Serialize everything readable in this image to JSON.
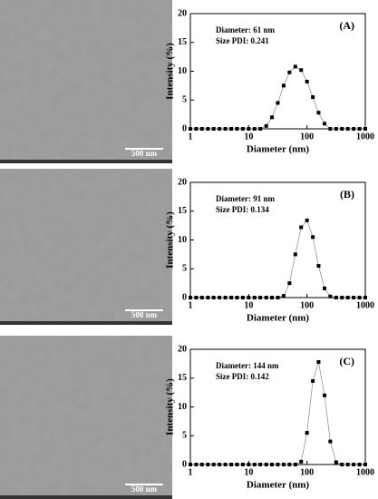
{
  "micrographs": [
    {
      "scale_bar": "500 nm"
    },
    {
      "scale_bar": "500 nm"
    },
    {
      "scale_bar": "500 nm"
    }
  ],
  "chart_data": [
    {
      "type": "scatter",
      "panel": "(A)",
      "annotations": [
        "Diameter: 61 nm",
        "Size PDI: 0.241"
      ],
      "x_label": "Diameter (nm)",
      "y_label": "Intensity (%)",
      "xscale": "log",
      "xlim": [
        1,
        1000
      ],
      "xticks": [
        1,
        10,
        100,
        1000
      ],
      "ylim": [
        0,
        20
      ],
      "yticks": [
        0,
        5,
        10,
        15,
        20
      ],
      "color": "#000000",
      "x": [
        1,
        1.26,
        1.58,
        2,
        2.51,
        3.16,
        3.98,
        5.01,
        6.31,
        7.94,
        10,
        12.6,
        15.8,
        20,
        25.1,
        31.6,
        39.8,
        50.1,
        63.1,
        79.4,
        100,
        126,
        158,
        200,
        251,
        316,
        398,
        501,
        631,
        794,
        1000
      ],
      "values": [
        0,
        0,
        0,
        0,
        0,
        0,
        0,
        0,
        0,
        0,
        0,
        0,
        0,
        0.5,
        2,
        4.5,
        7.5,
        9.8,
        10.8,
        10.2,
        8.2,
        5.5,
        2.8,
        0.9,
        0,
        0,
        0,
        0,
        0,
        0,
        0
      ]
    },
    {
      "type": "scatter",
      "panel": "(B)",
      "annotations": [
        "Diameter: 91 nm",
        "Size PDI: 0.134"
      ],
      "x_label": "Diameter (nm)",
      "y_label": "Intensity (%)",
      "xscale": "log",
      "xlim": [
        1,
        1000
      ],
      "xticks": [
        1,
        10,
        100,
        1000
      ],
      "ylim": [
        0,
        20
      ],
      "yticks": [
        0,
        5,
        10,
        15,
        20
      ],
      "color": "#000000",
      "x": [
        1,
        1.26,
        1.58,
        2,
        2.51,
        3.16,
        3.98,
        5.01,
        6.31,
        7.94,
        10,
        12.6,
        15.8,
        20,
        25.1,
        31.6,
        39.8,
        50.1,
        63.1,
        79.4,
        100,
        126,
        158,
        200,
        251,
        316,
        398,
        501,
        631,
        794,
        1000
      ],
      "values": [
        0,
        0,
        0,
        0,
        0,
        0,
        0,
        0,
        0,
        0,
        0,
        0,
        0,
        0,
        0,
        0,
        0.3,
        2.5,
        7.5,
        12.2,
        13.4,
        10.5,
        5.5,
        1.6,
        0.2,
        0,
        0,
        0,
        0,
        0,
        0
      ]
    },
    {
      "type": "scatter",
      "panel": "(C)",
      "annotations": [
        "Diameter: 144 nm",
        "Size PDI: 0.142"
      ],
      "x_label": "Diameter (nm)",
      "y_label": "Intensity (%)",
      "xscale": "log",
      "xlim": [
        1,
        1000
      ],
      "xticks": [
        1,
        10,
        100,
        1000
      ],
      "ylim": [
        0,
        20
      ],
      "yticks": [
        0,
        5,
        10,
        15,
        20
      ],
      "color": "#000000",
      "x": [
        1,
        1.26,
        1.58,
        2,
        2.51,
        3.16,
        3.98,
        5.01,
        6.31,
        7.94,
        10,
        12.6,
        15.8,
        20,
        25.1,
        31.6,
        39.8,
        50.1,
        63.1,
        79.4,
        100,
        126,
        158,
        200,
        251,
        316,
        398,
        501,
        631,
        794,
        1000
      ],
      "values": [
        0,
        0,
        0,
        0,
        0,
        0,
        0,
        0,
        0,
        0,
        0,
        0,
        0,
        0,
        0,
        0,
        0,
        0,
        0,
        0.5,
        5.5,
        14.5,
        17.8,
        12,
        4,
        0.4,
        0,
        0,
        0,
        0,
        0
      ]
    }
  ]
}
